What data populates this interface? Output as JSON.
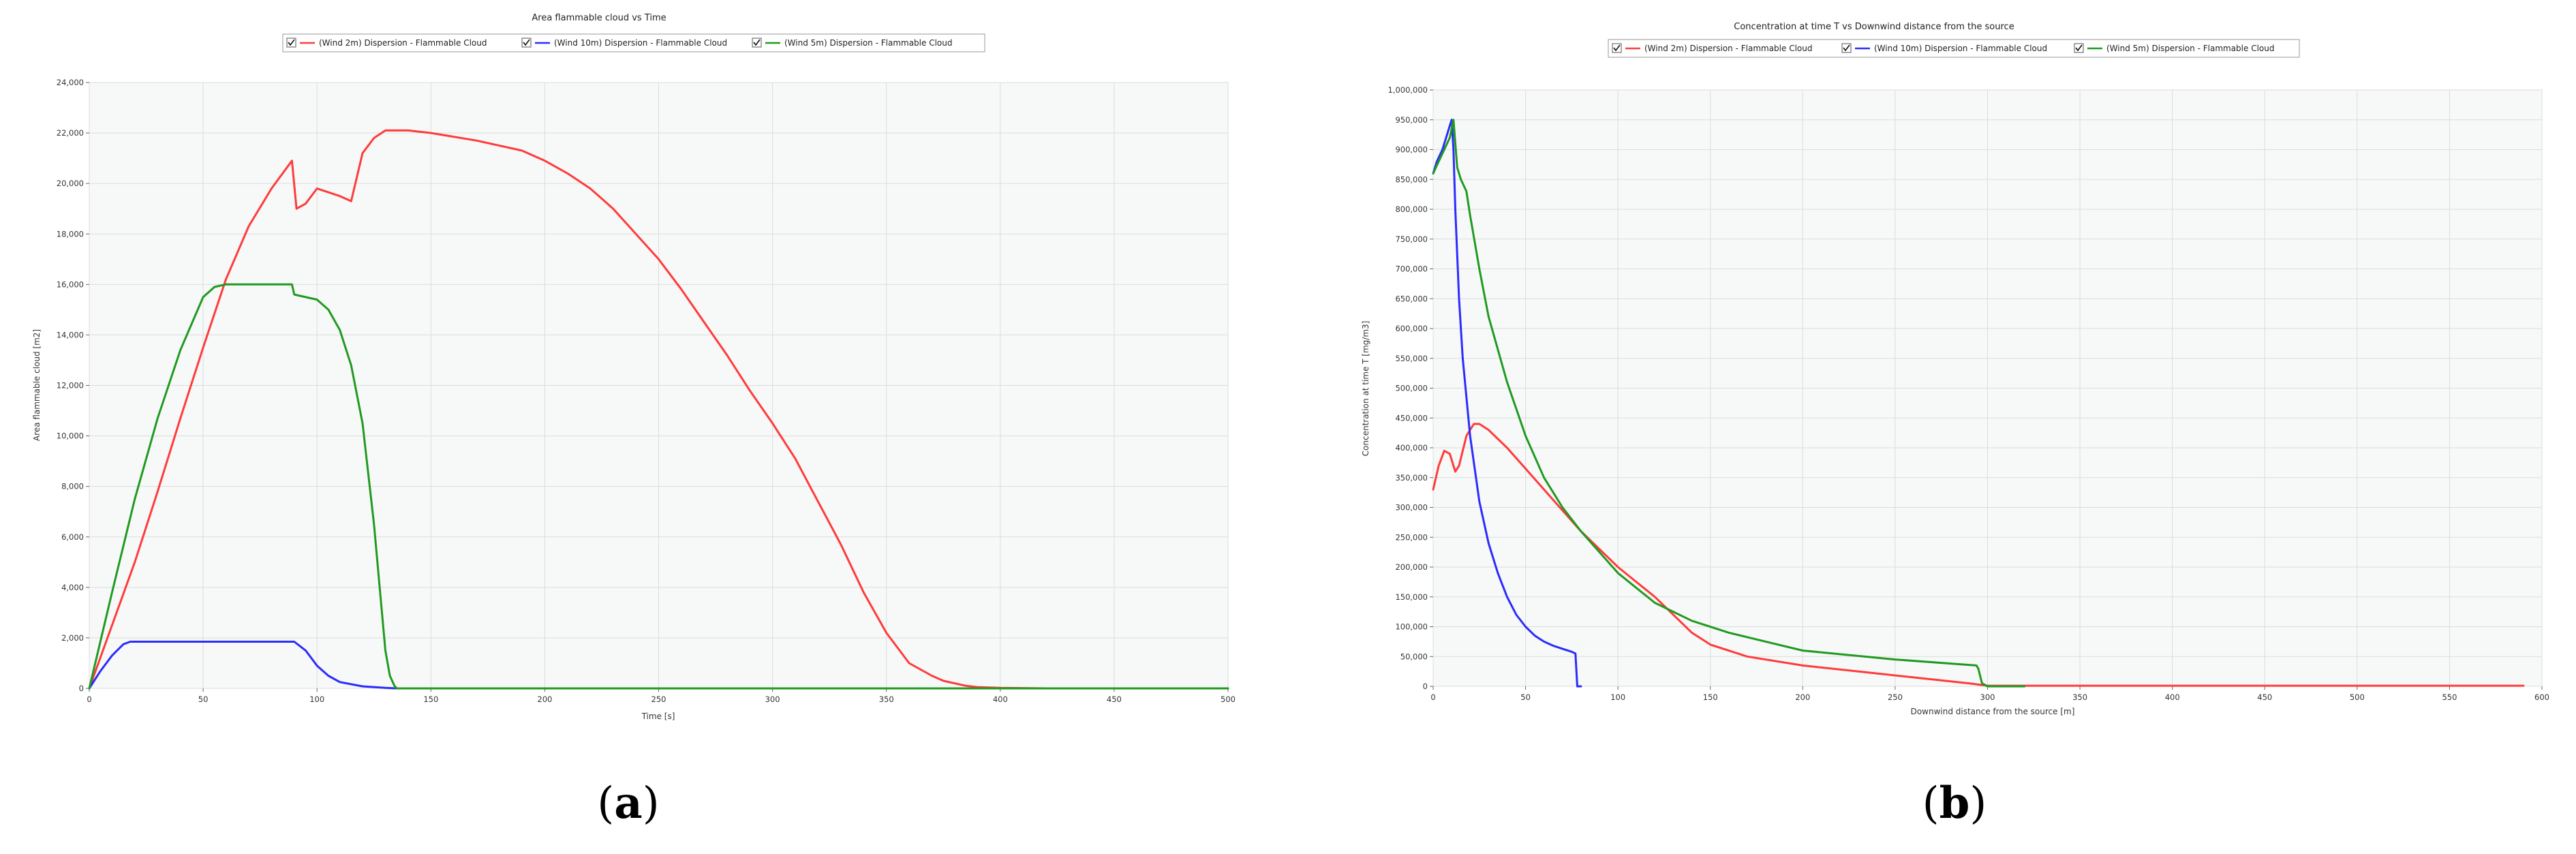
{
  "panels": [
    {
      "label_open": "(",
      "label_letter": "a",
      "label_close": ")"
    },
    {
      "label_open": "(",
      "label_letter": "b",
      "label_close": ")"
    }
  ],
  "colors": {
    "wind2m": "#ff3b3b",
    "wind10m": "#2b2bff",
    "wind5m": "#1f9a1f"
  },
  "chart_data": [
    {
      "type": "line",
      "title": "Area flammable cloud vs Time",
      "xlabel": "Time [s]",
      "ylabel": "Area flammable cloud [m2]",
      "xlim": [
        0,
        500
      ],
      "ylim": [
        0,
        24000
      ],
      "xticks": [
        0,
        50,
        100,
        150,
        200,
        250,
        300,
        350,
        400,
        450,
        500
      ],
      "xtick_labels": [
        "0",
        "50",
        "100",
        "150",
        "200",
        "250",
        "300",
        "350",
        "400",
        "450",
        "500"
      ],
      "yticks": [
        0,
        2000,
        4000,
        6000,
        8000,
        10000,
        12000,
        14000,
        16000,
        18000,
        20000,
        22000,
        24000
      ],
      "ytick_labels": [
        "0",
        "2,000",
        "4,000",
        "6,000",
        "8,000",
        "10,000",
        "12,000",
        "14,000",
        "16,000",
        "18,000",
        "20,000",
        "22,000",
        "24,000"
      ],
      "grid": true,
      "legend": "top-center",
      "series": [
        {
          "name": "(Wind 2m) Dispersion - Flammable Cloud",
          "color": "#ff3b3b",
          "x": [
            0,
            10,
            20,
            30,
            40,
            50,
            60,
            70,
            80,
            89,
            91,
            95,
            100,
            110,
            115,
            120,
            125,
            130,
            140,
            150,
            170,
            190,
            200,
            210,
            220,
            230,
            240,
            250,
            260,
            270,
            280,
            290,
            300,
            310,
            320,
            330,
            340,
            350,
            360,
            370,
            375,
            380,
            385,
            390,
            400,
            410,
            420,
            430,
            500
          ],
          "y": [
            0,
            2500,
            5000,
            7800,
            10700,
            13500,
            16200,
            18300,
            19800,
            20900,
            19000,
            19200,
            19800,
            19500,
            19300,
            21200,
            21800,
            22100,
            22100,
            22000,
            21700,
            21300,
            20900,
            20400,
            19800,
            19000,
            18000,
            17000,
            15800,
            14500,
            13200,
            11800,
            10500,
            9100,
            7400,
            5700,
            3800,
            2200,
            1000,
            500,
            300,
            200,
            100,
            50,
            20,
            10,
            0,
            0,
            0
          ]
        },
        {
          "name": "(Wind 10m) Dispersion - Flammable Cloud",
          "color": "#2b2bff",
          "x": [
            0,
            5,
            10,
            15,
            18,
            20,
            40,
            60,
            80,
            90,
            95,
            100,
            105,
            110,
            120,
            130,
            135,
            500
          ],
          "y": [
            0,
            700,
            1300,
            1750,
            1850,
            1850,
            1850,
            1850,
            1850,
            1850,
            1500,
            900,
            500,
            250,
            80,
            20,
            0,
            0
          ]
        },
        {
          "name": "(Wind 5m) Dispersion - Flammable Cloud",
          "color": "#1f9a1f",
          "x": [
            0,
            10,
            20,
            30,
            40,
            50,
            55,
            60,
            70,
            80,
            89,
            90,
            100,
            105,
            110,
            115,
            120,
            125,
            128,
            130,
            132,
            134,
            135,
            500
          ],
          "y": [
            0,
            3800,
            7500,
            10700,
            13400,
            15500,
            15900,
            16000,
            16000,
            16000,
            16000,
            15600,
            15400,
            15000,
            14200,
            12800,
            10500,
            6500,
            3500,
            1500,
            500,
            100,
            0,
            0
          ]
        }
      ]
    },
    {
      "type": "line",
      "title": "Concentration at time T vs Downwind distance from the source",
      "xlabel": "Downwind distance from the source [m]",
      "ylabel": "Concentration at time T [mg/m3]",
      "xlim": [
        0,
        600
      ],
      "ylim": [
        0,
        1000000
      ],
      "xticks": [
        0,
        50,
        100,
        150,
        200,
        250,
        300,
        350,
        400,
        450,
        500,
        550,
        600
      ],
      "xtick_labels": [
        "0",
        "50",
        "100",
        "150",
        "200",
        "250",
        "300",
        "350",
        "400",
        "450",
        "500",
        "550",
        "600"
      ],
      "yticks": [
        0,
        50000,
        100000,
        150000,
        200000,
        250000,
        300000,
        350000,
        400000,
        450000,
        500000,
        550000,
        600000,
        650000,
        700000,
        750000,
        800000,
        850000,
        900000,
        950000,
        1000000
      ],
      "ytick_labels": [
        "0",
        "50,000",
        "100,000",
        "150,000",
        "200,000",
        "250,000",
        "300,000",
        "350,000",
        "400,000",
        "450,000",
        "500,000",
        "550,000",
        "600,000",
        "650,000",
        "700,000",
        "750,000",
        "800,000",
        "850,000",
        "900,000",
        "950,000",
        "1,000,000"
      ],
      "grid": true,
      "legend": "top-center",
      "series": [
        {
          "name": "(Wind 2m) Dispersion - Flammable Cloud",
          "color": "#ff3b3b",
          "x": [
            0,
            3,
            6,
            9,
            12,
            14,
            18,
            22,
            25,
            30,
            40,
            60,
            80,
            100,
            120,
            140,
            150,
            170,
            200,
            230,
            260,
            290,
            295,
            300,
            400,
            500,
            590
          ],
          "y": [
            330000,
            370000,
            395000,
            390000,
            360000,
            370000,
            420000,
            440000,
            440000,
            430000,
            400000,
            330000,
            260000,
            200000,
            150000,
            90000,
            70000,
            50000,
            35000,
            25000,
            15000,
            5000,
            3000,
            1000,
            1000,
            1000,
            1000
          ]
        },
        {
          "name": "(Wind 10m) Dispersion - Flammable Cloud",
          "color": "#2b2bff",
          "x": [
            0,
            2,
            5,
            8,
            10,
            11,
            12,
            14,
            16,
            20,
            25,
            30,
            35,
            40,
            45,
            50,
            55,
            60,
            65,
            70,
            75,
            77,
            78,
            80
          ],
          "y": [
            860000,
            880000,
            900000,
            930000,
            950000,
            900000,
            800000,
            650000,
            550000,
            420000,
            310000,
            240000,
            190000,
            150000,
            120000,
            100000,
            85000,
            75000,
            68000,
            63000,
            58000,
            55000,
            0,
            0
          ]
        },
        {
          "name": "(Wind 5m) Dispersion - Flammable Cloud",
          "color": "#1f9a1f",
          "x": [
            0,
            3,
            6,
            9,
            11,
            13,
            15,
            18,
            20,
            25,
            30,
            40,
            50,
            60,
            70,
            80,
            100,
            120,
            140,
            160,
            180,
            200,
            250,
            294,
            295,
            297,
            300,
            320
          ],
          "y": [
            860000,
            880000,
            900000,
            920000,
            950000,
            870000,
            850000,
            830000,
            790000,
            700000,
            620000,
            510000,
            420000,
            350000,
            300000,
            260000,
            190000,
            140000,
            110000,
            90000,
            75000,
            60000,
            45000,
            35000,
            30000,
            5000,
            0,
            0
          ]
        }
      ]
    }
  ]
}
